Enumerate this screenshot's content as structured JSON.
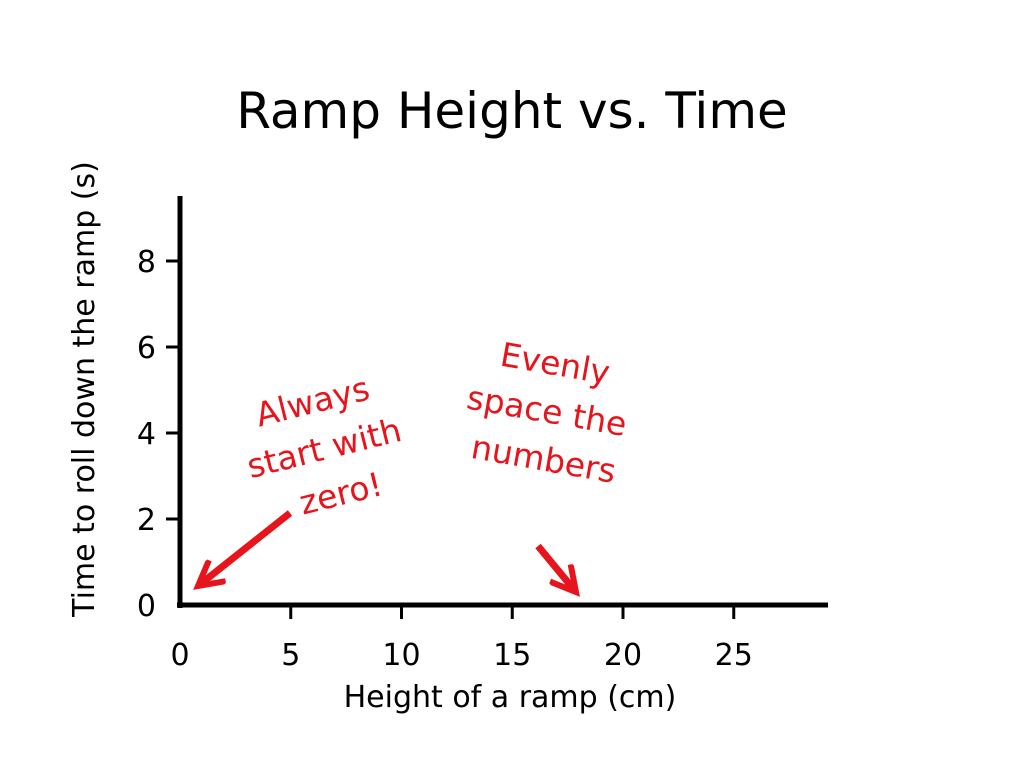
{
  "chart_data": {
    "type": "line",
    "title": "Ramp Height vs. Time",
    "xlabel": "Height of a ramp (cm)",
    "ylabel": "Time to roll down the ramp (s)",
    "xlim": [
      0,
      26.8
    ],
    "ylim": [
      0,
      8.5
    ],
    "x_ticks": [
      0,
      5,
      10,
      15,
      20,
      25
    ],
    "y_ticks": [
      0,
      2,
      4,
      6,
      8
    ],
    "series": [],
    "grid": false,
    "legend": "none",
    "annotations": [
      {
        "lines": [
          "Always",
          "start with",
          "zero!"
        ],
        "rotation_deg": -14,
        "color": "#e8141c"
      },
      {
        "lines": [
          "Evenly",
          "space the",
          "numbers"
        ],
        "rotation_deg": 10,
        "color": "#e8141c"
      }
    ]
  }
}
